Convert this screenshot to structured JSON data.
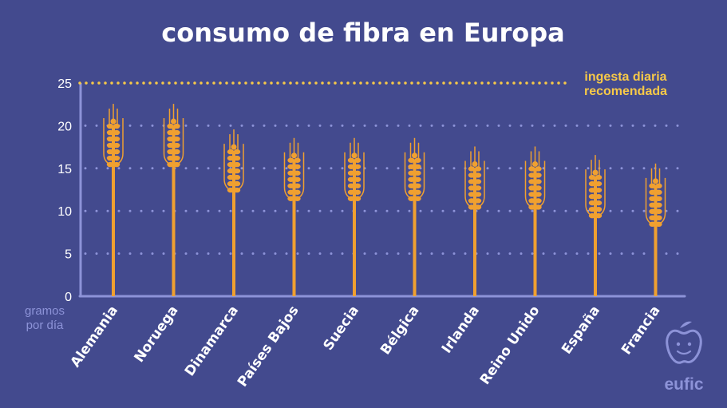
{
  "colors": {
    "background": "#434a8e",
    "axis": "#8d93d8",
    "grid_dots": "#8d93d8",
    "stalk": "#f0a030",
    "reference_line": "#f7c948",
    "text": "#ffffff"
  },
  "brand": {
    "name": "eufic",
    "icon": "apple-face-icon"
  },
  "chart_data": {
    "type": "bar",
    "title": "consumo de fibra en Europa",
    "xlabel": "",
    "ylabel": "gramos por día",
    "ylabel_lines": [
      "gramos",
      "por día"
    ],
    "ylim": [
      0,
      25
    ],
    "yticks": [
      "0",
      "5",
      "10",
      "15",
      "20",
      "25"
    ],
    "grid": "dotted",
    "categories": [
      "Alemania",
      "Noruega",
      "Dinamarca",
      "Países Bajos",
      "Suecia",
      "Bélgica",
      "Irlanda",
      "Reino Unido",
      "España",
      "Francia"
    ],
    "values": [
      20.5,
      20.5,
      17.5,
      16.5,
      16.5,
      16.5,
      15.5,
      15.5,
      14.5,
      13.5
    ],
    "reference": {
      "value": 25,
      "label_lines": [
        "ingesta diaria",
        "recomendada"
      ]
    }
  }
}
